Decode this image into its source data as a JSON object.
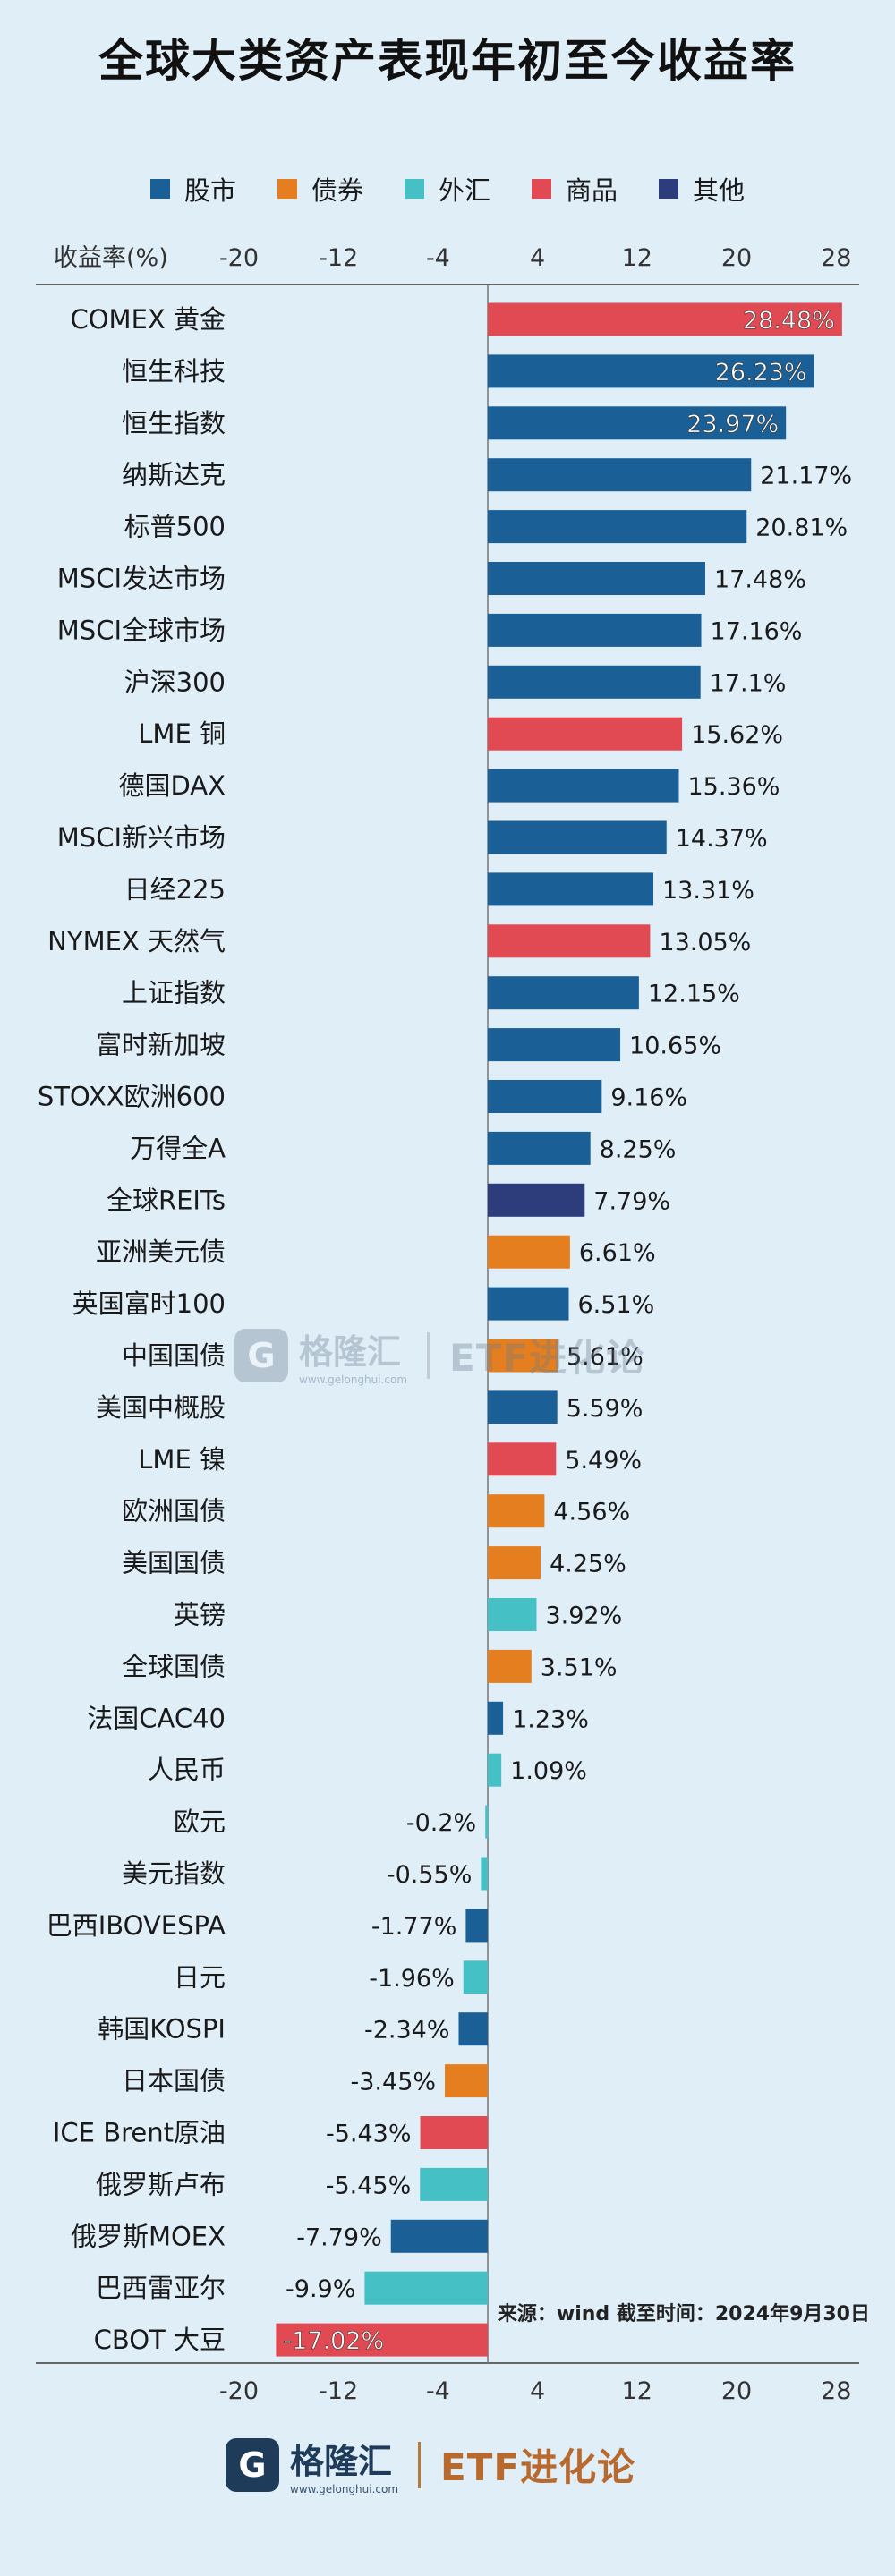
{
  "title": "全球大类资产表现年初至今收益率",
  "legend": [
    {
      "label": "股市",
      "color": "#1a5f96"
    },
    {
      "label": "债券",
      "color": "#e57e1e"
    },
    {
      "label": "外汇",
      "color": "#45c1c6"
    },
    {
      "label": "商品",
      "color": "#e14a52"
    },
    {
      "label": "其他",
      "color": "#2d3c7a"
    }
  ],
  "chart_data": {
    "type": "bar",
    "orientation": "horizontal",
    "xlabel": "收益率(%)",
    "xlim": [
      -20,
      28
    ],
    "xticks": [
      -20,
      -12,
      -4,
      4,
      12,
      20,
      28
    ],
    "grid": false,
    "legend_position": "top",
    "categories": [
      "COMEX 黄金",
      "恒生科技",
      "恒生指数",
      "纳斯达克",
      "标普500",
      "MSCI发达市场",
      "MSCI全球市场",
      "沪深300",
      "LME 铜",
      "德国DAX",
      "MSCI新兴市场",
      "日经225",
      "NYMEX 天然气",
      "上证指数",
      "富时新加坡",
      "STOXX欧洲600",
      "万得全A",
      "全球REITs",
      "亚洲美元债",
      "英国富时100",
      "中国国债",
      "美国中概股",
      "LME 镍",
      "欧洲国债",
      "美国国债",
      "英镑",
      "全球国债",
      "法国CAC40",
      "人民币",
      "欧元",
      "美元指数",
      "巴西IBOVESPA",
      "日元",
      "韩国KOSPI",
      "日本国债",
      "ICE Brent原油",
      "俄罗斯卢布",
      "俄罗斯MOEX",
      "巴西雷亚尔",
      "CBOT 大豆"
    ],
    "values": [
      28.48,
      26.23,
      23.97,
      21.17,
      20.81,
      17.48,
      17.16,
      17.1,
      15.62,
      15.36,
      14.37,
      13.31,
      13.05,
      12.15,
      10.65,
      9.16,
      8.25,
      7.79,
      6.61,
      6.51,
      5.61,
      5.59,
      5.49,
      4.56,
      4.25,
      3.92,
      3.51,
      1.23,
      1.09,
      -0.2,
      -0.55,
      -1.77,
      -1.96,
      -2.34,
      -3.45,
      -5.43,
      -5.45,
      -7.79,
      -9.9,
      -17.02
    ],
    "labels": [
      "28.48%",
      "26.23%",
      "23.97%",
      "21.17%",
      "20.81%",
      "17.48%",
      "17.16%",
      "17.1%",
      "15.62%",
      "15.36%",
      "14.37%",
      "13.31%",
      "13.05%",
      "12.15%",
      "10.65%",
      "9.16%",
      "8.25%",
      "7.79%",
      "6.61%",
      "6.51%",
      "5.61%",
      "5.59%",
      "5.49%",
      "4.56%",
      "4.25%",
      "3.92%",
      "3.51%",
      "1.23%",
      "1.09%",
      "-0.2%",
      "-0.55%",
      "-1.77%",
      "-1.96%",
      "-2.34%",
      "-3.45%",
      "-5.43%",
      "-5.45%",
      "-7.79%",
      "-9.9%",
      "-17.02%"
    ],
    "groups": [
      "商品",
      "股市",
      "股市",
      "股市",
      "股市",
      "股市",
      "股市",
      "股市",
      "商品",
      "股市",
      "股市",
      "股市",
      "商品",
      "股市",
      "股市",
      "股市",
      "股市",
      "其他",
      "债券",
      "股市",
      "债券",
      "股市",
      "商品",
      "债券",
      "债券",
      "外汇",
      "债券",
      "股市",
      "外汇",
      "外汇",
      "外汇",
      "股市",
      "外汇",
      "股市",
      "债券",
      "商品",
      "外汇",
      "股市",
      "外汇",
      "商品"
    ]
  },
  "footer": {
    "source": "来源：wind 截至时间：2024年9月30日"
  },
  "logo": {
    "mark": "G",
    "name": "格隆汇",
    "site": "www.gelonghui.com",
    "brand": "ETF进化论"
  }
}
